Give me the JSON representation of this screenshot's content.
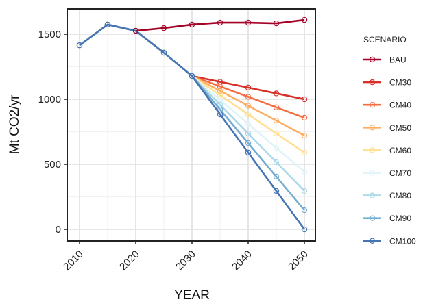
{
  "chart_data": {
    "type": "line",
    "xlabel": "YEAR",
    "ylabel": "Mt CO2/yr",
    "xlim": [
      2010,
      2050
    ],
    "ylim": [
      0,
      1600
    ],
    "x_ticks": [
      2010,
      2020,
      2030,
      2040,
      2050
    ],
    "y_ticks": [
      0,
      500,
      1000,
      1500
    ],
    "grid": true,
    "legend": {
      "title": "SCENARIO",
      "placement": "right"
    },
    "series": [
      {
        "name": "BAU",
        "color": "#a50026",
        "x": [
          2010,
          2015,
          2020,
          2025,
          2030,
          2035,
          2040,
          2045,
          2050
        ],
        "values": [
          1415,
          1574,
          1526,
          1547,
          1574,
          1589,
          1589,
          1584,
          1610
        ]
      },
      {
        "name": "CM30",
        "color": "#d73027",
        "x": [
          2010,
          2015,
          2020,
          2025,
          2030,
          2035,
          2040,
          2045,
          2050
        ],
        "values": [
          1415,
          1574,
          1526,
          1358,
          1179,
          1134,
          1090,
          1045,
          1000
        ]
      },
      {
        "name": "CM40",
        "color": "#f46d43",
        "x": [
          2010,
          2015,
          2020,
          2025,
          2030,
          2035,
          2040,
          2045,
          2050
        ],
        "values": [
          1415,
          1574,
          1526,
          1358,
          1179,
          1099,
          1019,
          938,
          858
        ]
      },
      {
        "name": "CM50",
        "color": "#fdae61",
        "x": [
          2010,
          2015,
          2020,
          2025,
          2030,
          2035,
          2040,
          2045,
          2050
        ],
        "values": [
          1415,
          1574,
          1526,
          1358,
          1179,
          1065,
          950,
          836,
          721
        ]
      },
      {
        "name": "CM60",
        "color": "#fee090",
        "x": [
          2010,
          2015,
          2020,
          2025,
          2030,
          2035,
          2040,
          2045,
          2050
        ],
        "values": [
          1415,
          1574,
          1526,
          1358,
          1179,
          1032,
          884,
          737,
          589
        ]
      },
      {
        "name": "CM70",
        "color": "#e0f3f8",
        "x": [
          2010,
          2015,
          2020,
          2025,
          2030,
          2035,
          2040,
          2045,
          2050
        ],
        "values": [
          1415,
          1574,
          1526,
          1358,
          1179,
          995,
          811,
          626,
          442
        ]
      },
      {
        "name": "CM80",
        "color": "#abd9e9",
        "x": [
          2010,
          2015,
          2020,
          2025,
          2030,
          2035,
          2040,
          2045,
          2050
        ],
        "values": [
          1415,
          1574,
          1526,
          1358,
          1179,
          958,
          737,
          516,
          295
        ]
      },
      {
        "name": "CM90",
        "color": "#74add1",
        "x": [
          2010,
          2015,
          2020,
          2025,
          2030,
          2035,
          2040,
          2045,
          2050
        ],
        "values": [
          1415,
          1574,
          1526,
          1358,
          1179,
          921,
          663,
          405,
          147
        ]
      },
      {
        "name": "CM100",
        "color": "#4575b4",
        "x": [
          2010,
          2015,
          2020,
          2025,
          2030,
          2035,
          2040,
          2045,
          2050
        ],
        "values": [
          1415,
          1574,
          1526,
          1358,
          1179,
          884,
          590,
          295,
          0
        ]
      }
    ]
  }
}
